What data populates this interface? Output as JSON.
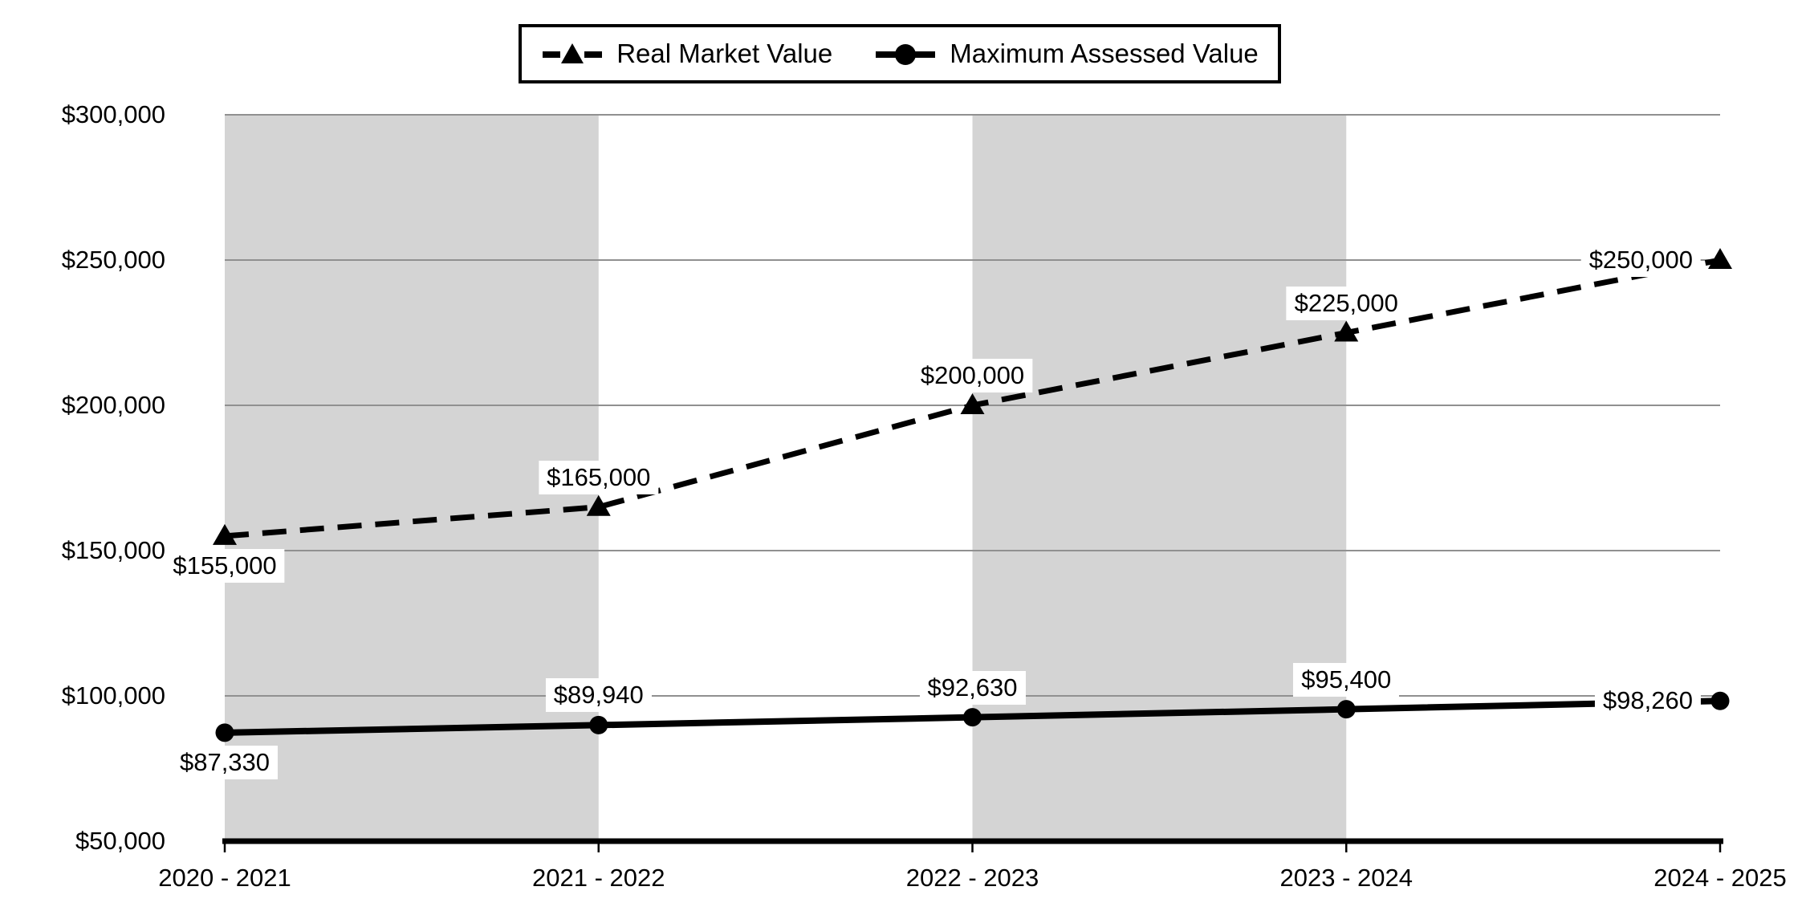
{
  "chart_data": {
    "type": "line",
    "title": "",
    "xlabel": "",
    "ylabel": "",
    "categories": [
      "2020 - 2021",
      "2021 - 2022",
      "2022 - 2023",
      "2023 - 2024",
      "2024 - 2025"
    ],
    "series": [
      {
        "name": "Real Market Value",
        "line_style": "dashed",
        "marker": "triangle",
        "color": "#000000",
        "values": [
          155000,
          165000,
          200000,
          225000,
          250000
        ],
        "data_labels": [
          "$155,000",
          "$165,000",
          "$200,000",
          "$225,000",
          "$250,000"
        ],
        "label_positions": [
          "below",
          "above",
          "above",
          "above",
          "left"
        ]
      },
      {
        "name": "Maximum Assessed Value",
        "line_style": "solid",
        "marker": "circle",
        "color": "#000000",
        "values": [
          87330,
          89940,
          92630,
          95400,
          98260
        ],
        "data_labels": [
          "$87,330",
          "$89,940",
          "$92,630",
          "$95,400",
          "$98,260"
        ],
        "label_positions": [
          "below",
          "above",
          "above",
          "above",
          "left"
        ]
      }
    ],
    "y_axis": {
      "min": 50000,
      "max": 300000,
      "step": 50000,
      "tick_labels_top_to_bottom": [
        "$300,000",
        "$250,000",
        "$200,000",
        "$150,000",
        "$100,000",
        "$50,000"
      ]
    },
    "grid": true,
    "legend_position": "top-center",
    "plot_bands": {
      "description": "alternating gray vertical bands between category columns",
      "intervals": [
        [
          0,
          1
        ],
        [
          2,
          3
        ]
      ],
      "color": "#d4d4d4"
    },
    "colors": {
      "series": "#000000",
      "gridline": "#909090",
      "axis": "#000000",
      "band": "#d4d4d4",
      "background": "#ffffff",
      "label_background": "#ffffff"
    }
  }
}
